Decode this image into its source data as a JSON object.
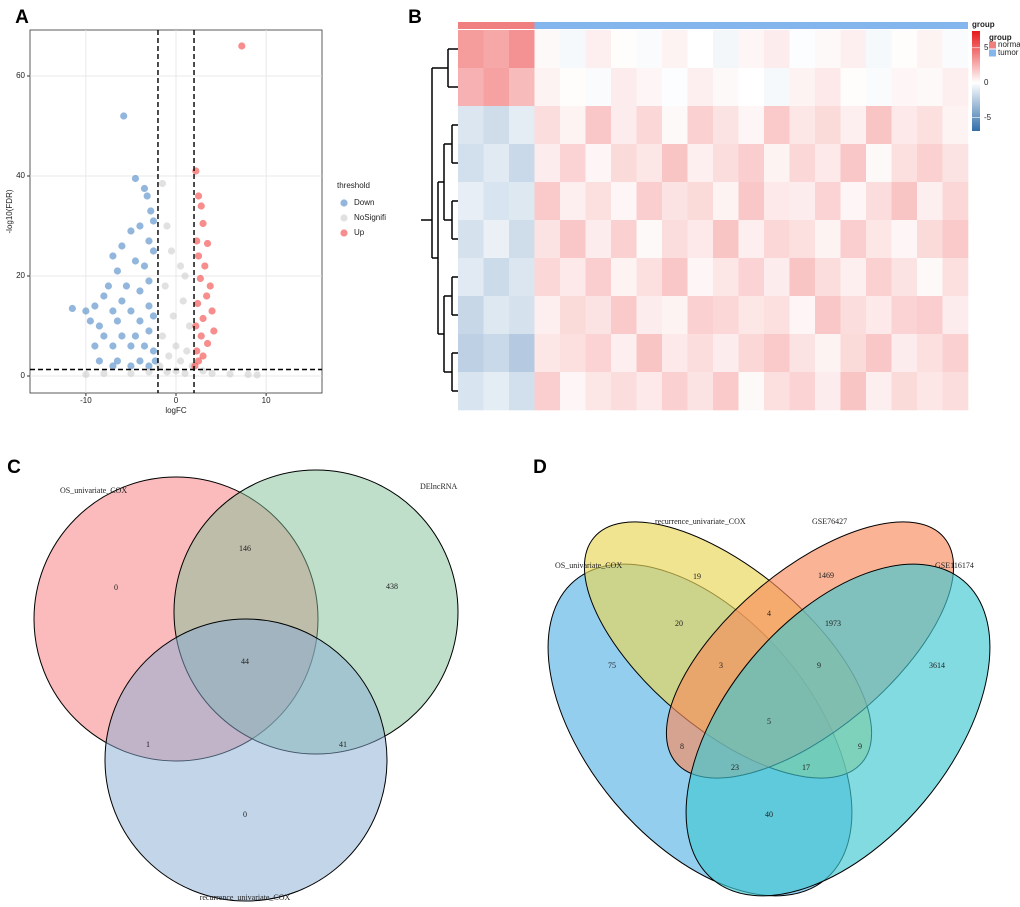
{
  "chart_data": [
    {
      "type": "scatter",
      "panel": "A",
      "x_label": "logFC",
      "y_label": "-log10(FDR)",
      "xlim": [
        -16.2,
        16.2
      ],
      "ylim": [
        -3.4,
        69.2
      ],
      "xticks": [
        -10,
        0,
        10
      ],
      "yticks": [
        0,
        20,
        40,
        60
      ],
      "grid": true,
      "threshold_lines": {
        "x": [
          -2,
          2
        ],
        "y": 1.3
      },
      "legend_title": "threshold",
      "legend": "right",
      "series": [
        {
          "name": "Down",
          "color": "#3a7bc0",
          "x": [
            -5.8,
            -4.5,
            -3.5,
            -3.2,
            -2.8,
            -2.5,
            -4,
            -5,
            -6,
            -3,
            -2.5,
            -7,
            -4.5,
            -6.5,
            -3.5,
            -7.5,
            -5.5,
            -4,
            -3,
            -8,
            -6,
            -9,
            -11.5,
            -10,
            -7,
            -5,
            -3,
            -9.5,
            -8.5,
            -6.5,
            -4,
            -2.5,
            -8,
            -6,
            -4.5,
            -3,
            -9,
            -7,
            -5,
            -3.5,
            -2.5,
            -8.5,
            -6.5,
            -4,
            -2.3,
            -7,
            -5,
            -3
          ],
          "values": [
            52,
            39.5,
            37.5,
            36,
            33,
            31,
            30,
            29,
            26,
            27,
            25,
            24,
            23,
            21,
            22,
            18,
            18,
            17,
            19,
            16,
            15,
            14,
            13.5,
            13,
            13,
            13,
            14,
            11,
            10,
            11,
            11,
            12,
            8,
            8,
            8,
            9,
            6,
            6,
            6,
            6,
            5,
            3,
            3,
            3,
            3,
            2,
            2,
            2
          ]
        },
        {
          "name": "NoSignifi",
          "color": "#c8c8c8",
          "x": [
            -1.5,
            -1,
            -0.5,
            0.5,
            1,
            -1.2,
            0.8,
            -0.3,
            1.5,
            -1.5,
            0,
            1.2,
            -0.8,
            0.5,
            1.8,
            -1.8,
            -5,
            -8,
            -10,
            4,
            6,
            8,
            -3,
            3,
            0,
            -1,
            1,
            9
          ],
          "values": [
            38.5,
            30,
            25,
            22,
            20,
            18,
            15,
            12,
            10,
            8,
            6,
            5,
            4,
            3,
            2,
            2,
            0.5,
            0.5,
            0.3,
            0.5,
            0.4,
            0.3,
            0.8,
            1,
            1,
            0.8,
            0.5,
            0.2
          ]
        },
        {
          "name": "Up",
          "color": "#f03030",
          "x": [
            7.3,
            2.2,
            2.5,
            2.8,
            3,
            2.3,
            3.5,
            2.5,
            3.2,
            2.7,
            3.8,
            3.4,
            2.4,
            4,
            3,
            2.2,
            4.2,
            2.8,
            3.5,
            2.3,
            3,
            2.5,
            2.1
          ],
          "values": [
            66,
            41,
            36,
            34,
            30.5,
            27,
            26.5,
            24,
            22,
            19.5,
            18,
            16,
            14.5,
            13,
            11.5,
            10,
            9,
            8,
            6.5,
            5,
            4,
            3,
            2
          ]
        }
      ]
    },
    {
      "type": "heatmap",
      "panel": "B",
      "group_label": "group",
      "groups": [
        {
          "name": "normal",
          "color": "#f08080",
          "columns": 3
        },
        {
          "name": "tumor",
          "color": "#84b5ec",
          "columns": 17
        }
      ],
      "zlim": [
        -6.9,
        7.4
      ],
      "zticks": [
        5,
        0,
        -5
      ],
      "matrix": [
        [
          3.2,
          2.8,
          3.5,
          0.2,
          -0.3,
          0.5,
          0.1,
          -0.2,
          0.4,
          0.0,
          -0.4,
          0.3,
          0.6,
          -0.1,
          0.2,
          0.5,
          -0.3,
          0.1,
          0.4,
          -0.2
        ],
        [
          2.5,
          3.0,
          2.2,
          0.4,
          0.1,
          -0.2,
          0.6,
          0.3,
          -0.1,
          0.5,
          0.2,
          0.0,
          -0.3,
          0.4,
          0.7,
          0.1,
          -0.2,
          0.3,
          0.2,
          0.5
        ],
        [
          -1.2,
          -1.6,
          -0.9,
          1.1,
          0.4,
          1.8,
          0.6,
          1.3,
          0.2,
          1.5,
          0.9,
          0.3,
          1.7,
          0.8,
          1.2,
          0.5,
          1.9,
          0.7,
          1.0,
          0.4
        ],
        [
          -1.5,
          -1.0,
          -1.8,
          0.6,
          1.4,
          0.3,
          1.2,
          0.8,
          1.9,
          0.5,
          1.1,
          1.6,
          0.4,
          1.3,
          0.7,
          1.8,
          0.2,
          1.0,
          1.5,
          0.9
        ],
        [
          -0.8,
          -1.3,
          -1.1,
          1.7,
          0.5,
          1.0,
          0.3,
          1.6,
          0.9,
          1.2,
          0.4,
          1.8,
          0.7,
          0.6,
          1.4,
          0.3,
          1.1,
          1.9,
          0.5,
          1.3
        ],
        [
          -1.4,
          -0.7,
          -1.6,
          0.9,
          1.8,
          0.6,
          1.5,
          0.2,
          1.1,
          0.7,
          1.9,
          0.5,
          1.3,
          1.0,
          0.4,
          1.6,
          0.8,
          0.3,
          1.2,
          1.7
        ],
        [
          -1.0,
          -1.7,
          -1.2,
          1.3,
          0.7,
          1.6,
          0.4,
          1.0,
          1.8,
          0.3,
          0.8,
          1.4,
          0.6,
          1.9,
          1.1,
          0.5,
          1.5,
          0.9,
          0.2,
          1.0
        ],
        [
          -1.9,
          -1.1,
          -1.4,
          0.5,
          1.2,
          0.9,
          1.7,
          0.6,
          0.4,
          1.5,
          1.3,
          0.8,
          1.0,
          0.3,
          1.8,
          1.1,
          0.7,
          1.4,
          1.6,
          0.6
        ],
        [
          -2.2,
          -1.8,
          -2.5,
          0.8,
          1.0,
          1.4,
          0.5,
          1.9,
          0.7,
          1.1,
          0.6,
          1.3,
          1.7,
          0.9,
          0.4,
          1.2,
          1.8,
          0.6,
          1.0,
          1.5
        ],
        [
          -1.3,
          -0.9,
          -1.5,
          1.6,
          0.3,
          0.8,
          1.1,
          0.7,
          1.5,
          0.9,
          1.7,
          0.2,
          1.0,
          1.4,
          0.6,
          1.9,
          0.5,
          1.2,
          0.8,
          1.1
        ]
      ]
    },
    {
      "type": "venn",
      "panel": "C",
      "sets": [
        {
          "name": "OS_univariate_COX",
          "color": "#f8787a"
        },
        {
          "name": "DElncRNA",
          "color": "#7fbf98"
        },
        {
          "name": "recurrence_univariate_COX",
          "color": "#88acd4"
        }
      ],
      "counts": [
        0,
        146,
        438,
        44,
        1,
        41,
        0
      ]
    },
    {
      "type": "venn",
      "panel": "D",
      "sets": [
        {
          "name": "OS_univariate_COX",
          "color": "#5ab4e5"
        },
        {
          "name": "recurrence_univariate_COX",
          "color": "#ead656"
        },
        {
          "name": "GSE76427",
          "color": "#f78c5c"
        },
        {
          "name": "GSE116174",
          "color": "#40c8d2"
        }
      ],
      "counts": [
        19,
        1469,
        20,
        4,
        1973,
        75,
        3,
        9,
        3614,
        5,
        8,
        9,
        23,
        17,
        40
      ]
    }
  ]
}
